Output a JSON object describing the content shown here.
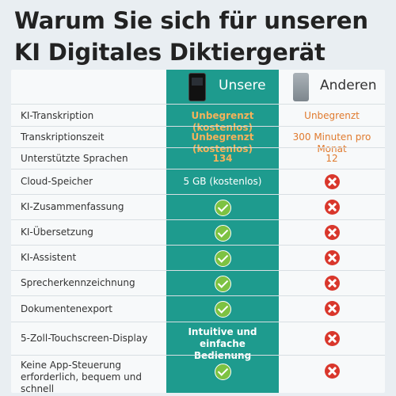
{
  "title": "Warum Sie sich für unseren KI Digitales Diktiergerät",
  "header": {
    "ours": "Unsere",
    "other": "Anderen"
  },
  "rows": [
    {
      "label": "KI-Transkription",
      "ours": "Unbegrenzt (kostenlos)",
      "other": "Unbegrenzt"
    },
    {
      "label": "Transkriptionszeit",
      "ours": "Unbegrenzt (kostenlos)",
      "other": "300 Minuten pro Monat"
    },
    {
      "label": "Unterstützte Sprachen",
      "ours": "134",
      "other": "12"
    },
    {
      "label": "Cloud-Speicher",
      "ours": "5 GB (kostenlos)",
      "other": ""
    },
    {
      "label": "KI-Zusammenfassung",
      "ours": "",
      "other": ""
    },
    {
      "label": "KI-Übersetzung",
      "ours": "",
      "other": ""
    },
    {
      "label": "KI-Assistent",
      "ours": "",
      "other": ""
    },
    {
      "label": "Sprecherkennzeichnung",
      "ours": "",
      "other": ""
    },
    {
      "label": "Dokumentenexport",
      "ours": "",
      "other": ""
    },
    {
      "label": "5-Zoll-Touchscreen-Display",
      "ours": "Intuitive und einfache Bedienung",
      "other": ""
    },
    {
      "label": "Keine App-Steuerung erforderlich, bequem und schnell",
      "ours": "",
      "other": ""
    }
  ],
  "icons": {
    "yes": "check-icon",
    "no": "cross-icon"
  },
  "colors": {
    "ours_column": "#1e9b8e",
    "highlight": "#e07a2e",
    "yes": "#7dc242",
    "no": "#d9372c"
  }
}
